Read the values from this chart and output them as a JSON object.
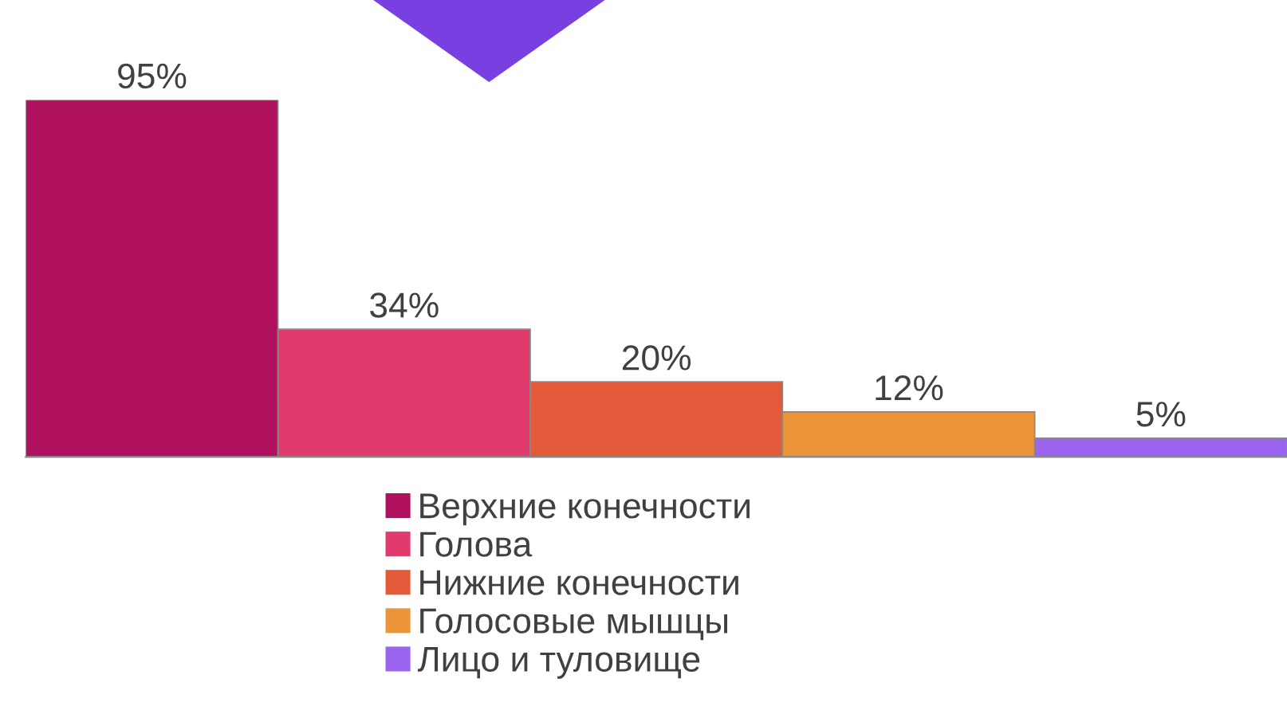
{
  "chart_data": {
    "type": "bar",
    "categories": [
      null
    ],
    "series": [
      {
        "name": "Верхние конечности",
        "color": "#b0115e",
        "values": [
          95
        ],
        "value_labels": [
          "95%"
        ]
      },
      {
        "name": "Голова",
        "color": "#e13a6c",
        "values": [
          34
        ],
        "value_labels": [
          "34%"
        ]
      },
      {
        "name": "Нижние конечности",
        "color": "#e35a3a",
        "values": [
          20
        ],
        "value_labels": [
          "20%"
        ]
      },
      {
        "name": "Голосовые мышцы",
        "color": "#ec9439",
        "values": [
          12
        ],
        "value_labels": [
          "12%"
        ]
      },
      {
        "name": "Лицо и туловище",
        "color": "#9b64ee",
        "values": [
          5
        ],
        "value_labels": [
          "5%"
        ]
      }
    ],
    "legend": "bottom",
    "grid": false
  }
}
